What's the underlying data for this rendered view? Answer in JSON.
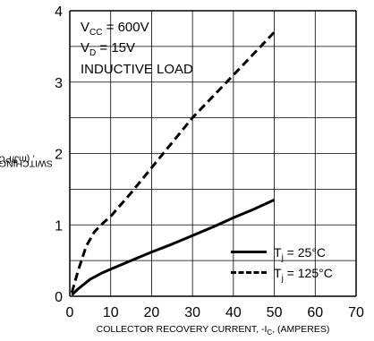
{
  "chart_data": {
    "type": "line",
    "xlabel_prefix": "COLLECTOR RECOVERY CURRENT, -I",
    "xlabel_sub": "C",
    "xlabel_suffix": ", (AMPERES)",
    "ylabel_prefix": "SWITCHING LOSS, E",
    "ylabel_sub": "rr",
    "ylabel_suffix": ", (mJ/PULSE)",
    "xlim": [
      0,
      70
    ],
    "ylim": [
      0,
      4
    ],
    "x_ticks": [
      "0",
      "10",
      "20",
      "30",
      "40",
      "50",
      "60",
      "70"
    ],
    "y_ticks": [
      "0",
      "1",
      "2",
      "3",
      "4"
    ],
    "grid": true,
    "annotations": {
      "vcc": {
        "prefix": "V",
        "sub": "CC",
        "suffix": " = 600V"
      },
      "vd": {
        "prefix": "V",
        "sub": "D",
        "suffix": " = 15V"
      },
      "load": "INDUCTIVE LOAD"
    },
    "series": [
      {
        "name_prefix": "T",
        "name_sub": "j",
        "name_suffix": " = 25°C",
        "style": "solid",
        "x": [
          0.5,
          2,
          5,
          8,
          10,
          15,
          20,
          25,
          30,
          35,
          40,
          45,
          50
        ],
        "y": [
          0.02,
          0.1,
          0.24,
          0.33,
          0.38,
          0.5,
          0.62,
          0.73,
          0.85,
          0.97,
          1.1,
          1.22,
          1.35
        ]
      },
      {
        "name_prefix": "T",
        "name_sub": "j",
        "name_suffix": " = 125°C",
        "style": "dashed",
        "x": [
          0.5,
          2,
          4,
          6,
          8,
          10,
          15,
          20,
          25,
          30,
          35,
          40,
          45,
          50
        ],
        "y": [
          0.05,
          0.35,
          0.7,
          0.9,
          1.02,
          1.12,
          1.45,
          1.8,
          2.15,
          2.5,
          2.8,
          3.1,
          3.4,
          3.7
        ]
      }
    ],
    "legend_position": "bottom-right",
    "line_color": "#000000",
    "grid_color": "#000000"
  }
}
